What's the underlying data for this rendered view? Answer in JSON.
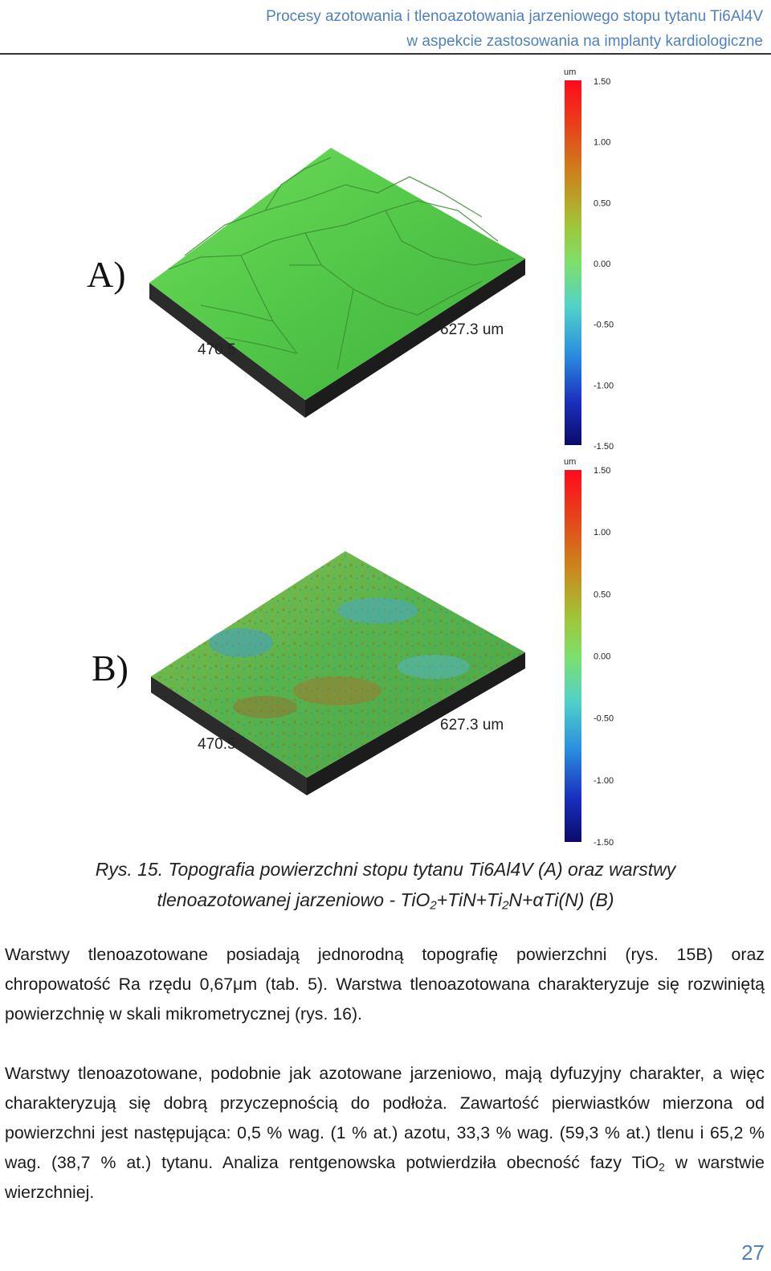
{
  "header": {
    "line1": "Procesy azotowania i tlenoazotowania jarzeniowego stopu tytanu Ti6Al4V",
    "line2": "w aspekcie zastosowania na implanty kardiologiczne"
  },
  "figure": {
    "panels": [
      {
        "label": "A)",
        "x_dim": "627.3 um",
        "y_dim": "470.5",
        "scale": {
          "unit": "um",
          "ticks": [
            "1.50",
            "1.00",
            "0.50",
            "0.00",
            "-0.50",
            "-1.00",
            "-1.50"
          ]
        }
      },
      {
        "label": "B)",
        "x_dim": "627.3 um",
        "y_dim": "470.5",
        "scale": {
          "unit": "um",
          "ticks": [
            "1.50",
            "1.00",
            "0.50",
            "0.00",
            "-0.50",
            "-1.00",
            "-1.50"
          ]
        }
      }
    ],
    "colors": {
      "scale_top": "#e8001c",
      "scale_mid": "#7de06a",
      "scale_bottom": "#0a0a7a",
      "surface_a": "#56c94a",
      "surface_b": "#4bb84a",
      "base": "#2a2a2a"
    }
  },
  "caption": {
    "line1": "Rys. 15. Topografia powierzchni stopu tytanu Ti6Al4V (A) oraz warstwy",
    "line2_a": "tlenoazotowanej jarzeniowo - TiO",
    "line2_sub1": "2",
    "line2_b": "+TiN+Ti",
    "line2_sub2": "2",
    "line2_c": "N+αTi(N) (B)"
  },
  "paragraph1": "Warstwy tlenoazotowane posiadają jednorodną topografię powierzchni (rys. 15B) oraz chropowatość Ra rzędu 0,67μm (tab. 5). Warstwa tlenoazotowana charakteryzuje się rozwiniętą powierzchnię w skali mikrometrycznej (rys. 16).",
  "paragraph2": {
    "text_a": "Warstwy tlenoazotowane, podobnie jak azotowane jarzeniowo, mają dyfuzyjny charakter, a więc charakteryzują się dobrą przyczepnością do podłoża. Zawartość pierwiastków mierzona od powierzchni jest następująca: 0,5 % wag. (1 % at.) azotu, 33,3 % wag. (59,3 % at.) tlenu i 65,2 % wag. (38,7 % at.) tytanu. Analiza rentgenowska potwierdziła obecność fazy TiO",
    "sub": "2",
    "text_b": " w warstwie wierzchniej."
  },
  "page_number": "27"
}
